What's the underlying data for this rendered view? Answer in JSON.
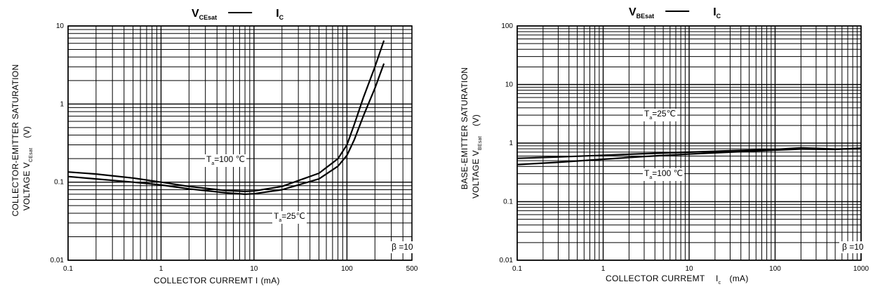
{
  "chart_data": [
    {
      "type": "line",
      "title": {
        "main": "V",
        "sub": "CEsat",
        "dash": "—",
        "right": "I",
        "right_sub": "C"
      },
      "xlabel": {
        "main": "COLLECTOR CURREMT I",
        "unit": "(mA)"
      },
      "ylabel": {
        "line1": "COLLECTOR-EMITTER SATURATION",
        "line2_main": "VOLTAGE   V",
        "line2_sub": "CEsat",
        "unit": "(V)"
      },
      "x_scale": "log",
      "y_scale": "log",
      "xlim": [
        0.1,
        500
      ],
      "ylim": [
        0.01,
        10
      ],
      "x_ticks": [
        {
          "v": 0.1,
          "label": "0.1"
        },
        {
          "v": 1,
          "label": "1"
        },
        {
          "v": 10,
          "label": "10"
        },
        {
          "v": 100,
          "label": "100"
        },
        {
          "v": 500,
          "label": "500"
        }
      ],
      "y_ticks": [
        {
          "v": 0.01,
          "label": "0.01"
        },
        {
          "v": 0.1,
          "label": "0.1"
        },
        {
          "v": 1,
          "label": "1"
        },
        {
          "v": 10,
          "label": "10"
        }
      ],
      "grid": true,
      "note": "β =10",
      "series": [
        {
          "name": {
            "main": "T",
            "sub": "a",
            "rest": "=100 ℃"
          },
          "x": [
            0.1,
            0.2,
            0.5,
            1,
            2,
            5,
            8,
            10,
            20,
            50,
            80,
            100,
            120,
            150,
            200,
            250
          ],
          "y": [
            0.135,
            0.127,
            0.113,
            0.1,
            0.088,
            0.078,
            0.076,
            0.077,
            0.088,
            0.13,
            0.2,
            0.3,
            0.55,
            1.2,
            3.0,
            6.5
          ]
        },
        {
          "name": {
            "main": "T",
            "sub": "a",
            "rest": "=25℃"
          },
          "x": [
            0.1,
            0.2,
            0.5,
            1,
            2,
            5,
            8,
            10,
            20,
            50,
            80,
            100,
            120,
            150,
            200,
            250
          ],
          "y": [
            0.118,
            0.11,
            0.1,
            0.092,
            0.082,
            0.073,
            0.07,
            0.071,
            0.08,
            0.11,
            0.16,
            0.22,
            0.35,
            0.7,
            1.6,
            3.3
          ]
        }
      ]
    },
    {
      "type": "line",
      "title": {
        "main": "V",
        "sub": "BEsat",
        "dash": "—",
        "right": "I",
        "right_sub": "C"
      },
      "xlabel": {
        "main": "COLLECTOR CURREMT",
        "sym": "I",
        "sym_sub": "c",
        "unit": "(mA)"
      },
      "ylabel": {
        "line1": "BASE-EMITTER SATURATION",
        "line2_main": "VOLTAGE  V",
        "line2_sub": "BEsat",
        "unit": "(V)"
      },
      "x_scale": "log",
      "y_scale": "log",
      "xlim": [
        0.1,
        1000
      ],
      "ylim": [
        0.01,
        100
      ],
      "x_ticks": [
        {
          "v": 0.1,
          "label": "0.1"
        },
        {
          "v": 1,
          "label": "1"
        },
        {
          "v": 10,
          "label": "10"
        },
        {
          "v": 100,
          "label": "100"
        },
        {
          "v": 1000,
          "label": "1000"
        }
      ],
      "y_ticks": [
        {
          "v": 0.01,
          "label": "0.01"
        },
        {
          "v": 0.1,
          "label": "0.1"
        },
        {
          "v": 1,
          "label": "1"
        },
        {
          "v": 10,
          "label": "10"
        },
        {
          "v": 100,
          "label": "100"
        }
      ],
      "grid": true,
      "note": "β =10",
      "series": [
        {
          "name": {
            "main": "T",
            "sub": "a",
            "rest": "=25℃"
          },
          "x": [
            0.1,
            0.3,
            1,
            3,
            10,
            30,
            100,
            200,
            500,
            1000
          ],
          "y": [
            0.55,
            0.58,
            0.62,
            0.66,
            0.7,
            0.74,
            0.78,
            0.83,
            0.79,
            0.8
          ]
        },
        {
          "name": {
            "main": "T",
            "sub": "a",
            "rest": "=100 ℃"
          },
          "x": [
            0.1,
            0.3,
            1,
            3,
            10,
            30,
            100,
            200,
            500,
            1000
          ],
          "y": [
            0.43,
            0.47,
            0.53,
            0.59,
            0.65,
            0.7,
            0.76,
            0.79,
            0.78,
            0.82
          ]
        }
      ]
    }
  ]
}
